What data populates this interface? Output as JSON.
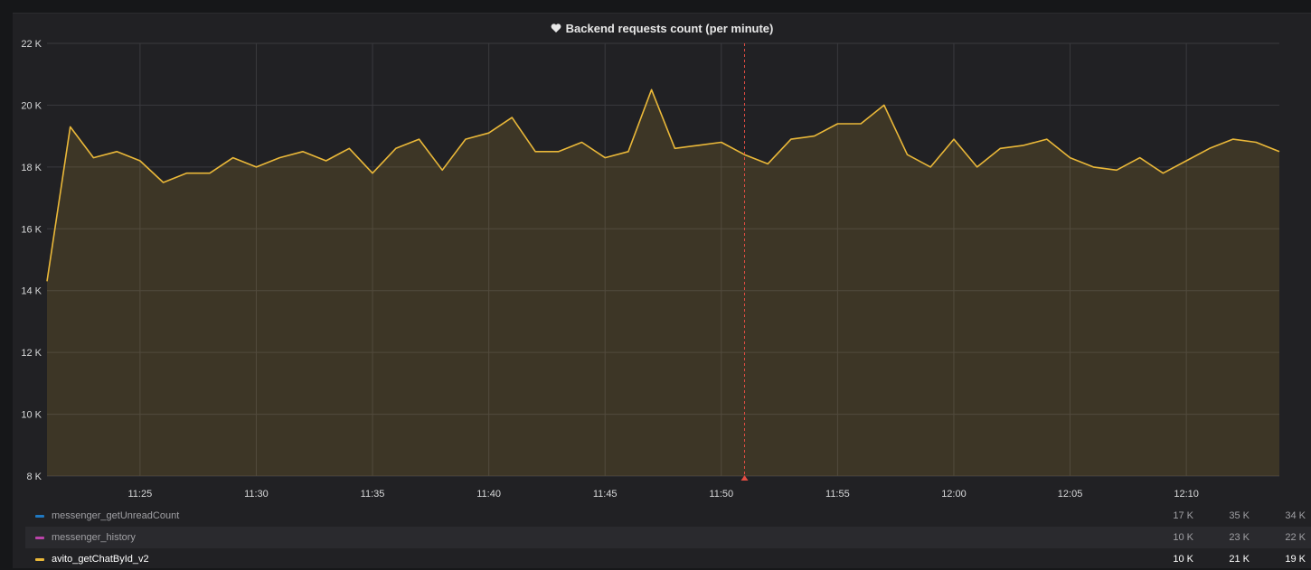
{
  "panel": {
    "title": "Backend requests count (per minute)",
    "title_icon": "heart-icon"
  },
  "chart_data": {
    "type": "area",
    "title": "Backend requests count (per minute)",
    "ylim": [
      8000,
      22000
    ],
    "yticks": [
      8000,
      10000,
      12000,
      14000,
      16000,
      18000,
      20000,
      22000
    ],
    "ytick_labels": [
      "8 K",
      "10 K",
      "12 K",
      "14 K",
      "16 K",
      "18 K",
      "20 K",
      "22 K"
    ],
    "xlim": [
      "11:21",
      "12:14"
    ],
    "xticks": [
      "11:25",
      "11:30",
      "11:35",
      "11:40",
      "11:45",
      "11:50",
      "11:55",
      "12:00",
      "12:05",
      "12:10"
    ],
    "grid": true,
    "marker_time": "11:51",
    "series": [
      {
        "name": "avito_getChatById_v2",
        "color": "#eab839",
        "x": [
          "11:21",
          "11:22",
          "11:23",
          "11:24",
          "11:25",
          "11:26",
          "11:27",
          "11:28",
          "11:29",
          "11:30",
          "11:31",
          "11:32",
          "11:33",
          "11:34",
          "11:35",
          "11:36",
          "11:37",
          "11:38",
          "11:39",
          "11:40",
          "11:41",
          "11:42",
          "11:43",
          "11:44",
          "11:45",
          "11:46",
          "11:47",
          "11:48",
          "11:49",
          "11:50",
          "11:51",
          "11:52",
          "11:53",
          "11:54",
          "11:55",
          "11:56",
          "11:57",
          "11:58",
          "11:59",
          "12:00",
          "12:01",
          "12:02",
          "12:03",
          "12:04",
          "12:05",
          "12:06",
          "12:07",
          "12:08",
          "12:09",
          "12:10",
          "12:11",
          "12:12",
          "12:13",
          "12:14"
        ],
        "values": [
          14300,
          19300,
          18300,
          18500,
          18200,
          17500,
          17800,
          17800,
          18300,
          18000,
          18300,
          18500,
          18200,
          18600,
          17800,
          18600,
          18900,
          17900,
          18900,
          19100,
          19600,
          18500,
          18500,
          18800,
          18300,
          18500,
          20500,
          18600,
          18700,
          18800,
          18400,
          18100,
          18900,
          19000,
          19400,
          19400,
          20000,
          18400,
          18000,
          18900,
          18000,
          18600,
          18700,
          18900,
          18300,
          18000,
          17900,
          18300,
          17800,
          18200,
          18600,
          18900,
          18800,
          18500
        ]
      }
    ]
  },
  "legend": [
    {
      "name": "messenger_getUnreadCount",
      "color": "#1f78c1",
      "v1": "17 K",
      "v2": "35 K",
      "v3": "34 K"
    },
    {
      "name": "messenger_history",
      "color": "#ba43a9",
      "v1": "10 K",
      "v2": "23 K",
      "v3": "22 K"
    },
    {
      "name": "avito_getChatById_v2",
      "color": "#eab839",
      "v1": "10 K",
      "v2": "21 K",
      "v3": "19 K"
    }
  ]
}
